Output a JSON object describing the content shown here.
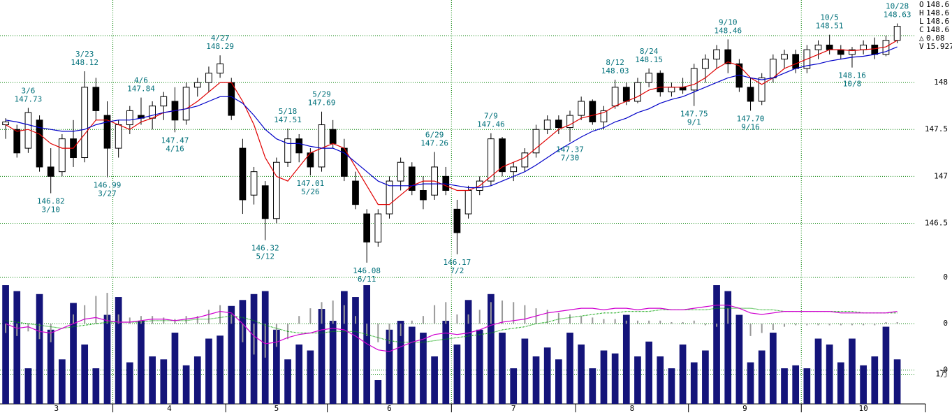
{
  "chart_data": {
    "type": "candlestick",
    "months": [
      "3",
      "4",
      "5",
      "6",
      "7",
      "8",
      "9",
      "10"
    ],
    "xlim": [
      -0.5,
      81.5
    ],
    "xticks": [
      9.5,
      19.5,
      28.5,
      39.5,
      50.5,
      60.5,
      70.5,
      81.5
    ],
    "xgrid": [
      9.5,
      39.5,
      70.5
    ],
    "ylim": [
      145.93,
      148.88
    ],
    "yticks": [
      146.5,
      147,
      147.5,
      148
    ],
    "ygrid": [
      148.5
    ],
    "up_color": "#ffffff",
    "down_color": "#000000",
    "ohlc": [
      [
        147.55,
        147.62,
        147.4,
        147.58
      ],
      [
        147.5,
        147.55,
        147.2,
        147.25
      ],
      [
        147.3,
        147.73,
        147.25,
        147.68
      ],
      [
        147.6,
        147.65,
        147.05,
        147.1
      ],
      [
        147.1,
        147.3,
        146.82,
        147.0
      ],
      [
        147.05,
        147.45,
        147.0,
        147.4
      ],
      [
        147.4,
        147.6,
        147.1,
        147.2
      ],
      [
        147.2,
        148.12,
        147.15,
        147.95
      ],
      [
        147.95,
        148.05,
        147.6,
        147.7
      ],
      [
        147.65,
        147.8,
        146.99,
        147.3
      ],
      [
        147.3,
        147.6,
        147.2,
        147.55
      ],
      [
        147.55,
        147.75,
        147.45,
        147.7
      ],
      [
        147.65,
        147.84,
        147.55,
        147.62
      ],
      [
        147.62,
        147.8,
        147.5,
        147.75
      ],
      [
        147.75,
        147.9,
        147.6,
        147.85
      ],
      [
        147.8,
        147.95,
        147.47,
        147.6
      ],
      [
        147.6,
        148.0,
        147.55,
        147.95
      ],
      [
        147.95,
        148.05,
        147.85,
        148.0
      ],
      [
        148.0,
        148.17,
        147.9,
        148.1
      ],
      [
        148.1,
        148.29,
        148.05,
        148.2
      ],
      [
        148.0,
        148.05,
        147.6,
        147.65
      ],
      [
        147.3,
        147.4,
        146.6,
        146.75
      ],
      [
        146.8,
        147.1,
        146.7,
        147.05
      ],
      [
        146.9,
        146.95,
        146.32,
        146.55
      ],
      [
        146.55,
        147.2,
        146.5,
        147.15
      ],
      [
        147.15,
        147.51,
        147.1,
        147.4
      ],
      [
        147.4,
        147.45,
        147.15,
        147.25
      ],
      [
        147.25,
        147.3,
        147.01,
        147.1
      ],
      [
        147.1,
        147.69,
        147.05,
        147.55
      ],
      [
        147.5,
        147.6,
        147.3,
        147.35
      ],
      [
        147.3,
        147.4,
        146.95,
        147.0
      ],
      [
        146.95,
        147.05,
        146.65,
        146.7
      ],
      [
        146.6,
        146.65,
        146.08,
        146.3
      ],
      [
        146.3,
        146.65,
        146.25,
        146.6
      ],
      [
        146.6,
        147.0,
        146.55,
        146.95
      ],
      [
        146.95,
        147.2,
        146.85,
        147.15
      ],
      [
        147.1,
        147.15,
        146.8,
        146.85
      ],
      [
        146.85,
        147.0,
        146.65,
        146.75
      ],
      [
        146.8,
        147.26,
        146.75,
        147.1
      ],
      [
        147.0,
        147.1,
        146.8,
        146.85
      ],
      [
        146.65,
        146.75,
        146.17,
        146.4
      ],
      [
        146.6,
        146.9,
        146.55,
        146.85
      ],
      [
        146.85,
        147.0,
        146.8,
        146.95
      ],
      [
        146.95,
        147.46,
        146.9,
        147.4
      ],
      [
        147.4,
        147.42,
        147.0,
        147.05
      ],
      [
        147.05,
        147.15,
        146.95,
        147.1
      ],
      [
        147.1,
        147.3,
        147.05,
        147.25
      ],
      [
        147.25,
        147.55,
        147.2,
        147.5
      ],
      [
        147.5,
        147.65,
        147.45,
        147.6
      ],
      [
        147.6,
        147.65,
        147.45,
        147.52
      ],
      [
        147.52,
        147.7,
        147.37,
        147.65
      ],
      [
        147.65,
        147.85,
        147.6,
        147.8
      ],
      [
        147.8,
        147.82,
        147.55,
        147.58
      ],
      [
        147.58,
        147.75,
        147.5,
        147.7
      ],
      [
        147.75,
        148.03,
        147.72,
        147.95
      ],
      [
        147.95,
        148.0,
        147.76,
        147.8
      ],
      [
        147.8,
        148.05,
        147.78,
        148.0
      ],
      [
        148.0,
        148.15,
        147.95,
        148.1
      ],
      [
        148.1,
        148.13,
        147.85,
        147.9
      ],
      [
        147.9,
        148.0,
        147.85,
        147.95
      ],
      [
        147.95,
        148.05,
        147.88,
        147.92
      ],
      [
        147.92,
        148.2,
        147.75,
        148.15
      ],
      [
        148.15,
        148.3,
        148.0,
        148.25
      ],
      [
        148.25,
        148.4,
        148.15,
        148.35
      ],
      [
        148.35,
        148.46,
        148.1,
        148.2
      ],
      [
        148.2,
        148.25,
        147.9,
        147.95
      ],
      [
        147.95,
        148.05,
        147.7,
        147.8
      ],
      [
        147.8,
        148.1,
        147.76,
        148.05
      ],
      [
        148.05,
        148.3,
        148.0,
        148.25
      ],
      [
        148.25,
        148.35,
        148.15,
        148.3
      ],
      [
        148.3,
        148.35,
        148.1,
        148.15
      ],
      [
        148.15,
        148.4,
        148.1,
        148.35
      ],
      [
        148.35,
        148.45,
        148.25,
        148.4
      ],
      [
        148.4,
        148.51,
        148.3,
        148.35
      ],
      [
        148.35,
        148.4,
        148.25,
        148.3
      ],
      [
        148.3,
        148.38,
        148.16,
        148.35
      ],
      [
        148.35,
        148.45,
        148.3,
        148.4
      ],
      [
        148.4,
        148.48,
        148.25,
        148.3
      ],
      [
        148.3,
        148.5,
        148.28,
        148.45
      ],
      [
        148.45,
        148.63,
        148.42,
        148.6
      ]
    ],
    "moving_averages": [
      {
        "color": "#e00000",
        "values": [
          147.55,
          147.48,
          147.5,
          147.45,
          147.35,
          147.3,
          147.3,
          147.45,
          147.6,
          147.6,
          147.55,
          147.5,
          147.58,
          147.62,
          147.68,
          147.7,
          147.72,
          147.8,
          147.9,
          148.0,
          148.0,
          147.8,
          147.55,
          147.2,
          147.0,
          146.95,
          147.1,
          147.25,
          147.3,
          147.35,
          147.3,
          147.1,
          146.9,
          146.7,
          146.7,
          146.8,
          146.9,
          146.95,
          146.95,
          146.9,
          146.85,
          146.85,
          146.9,
          147.0,
          147.1,
          147.15,
          147.2,
          147.3,
          147.4,
          147.5,
          147.55,
          147.62,
          147.65,
          147.68,
          147.75,
          147.8,
          147.85,
          147.92,
          147.95,
          147.95,
          147.95,
          147.98,
          148.05,
          148.15,
          148.22,
          148.18,
          148.05,
          147.98,
          148.05,
          148.15,
          148.2,
          148.25,
          148.3,
          148.35,
          148.35,
          148.34,
          148.35,
          148.36,
          148.38,
          148.45
        ]
      },
      {
        "color": "#0000c8",
        "values": [
          147.6,
          147.58,
          147.55,
          147.52,
          147.5,
          147.48,
          147.48,
          147.5,
          147.55,
          147.58,
          147.6,
          147.6,
          147.62,
          147.65,
          147.68,
          147.7,
          147.72,
          147.75,
          147.8,
          147.85,
          147.85,
          147.78,
          147.65,
          147.5,
          147.4,
          147.35,
          147.35,
          147.32,
          147.3,
          147.3,
          147.25,
          147.15,
          147.05,
          146.95,
          146.9,
          146.9,
          146.9,
          146.92,
          146.92,
          146.92,
          146.9,
          146.88,
          146.88,
          146.9,
          146.95,
          147.0,
          147.05,
          147.12,
          147.2,
          147.28,
          147.35,
          147.42,
          147.48,
          147.52,
          147.58,
          147.62,
          147.68,
          147.72,
          147.78,
          147.82,
          147.85,
          147.9,
          147.95,
          148.0,
          148.05,
          148.08,
          148.05,
          148.03,
          148.05,
          148.1,
          148.15,
          148.18,
          148.2,
          148.23,
          148.25,
          148.27,
          148.28,
          148.3,
          148.33,
          148.38
        ]
      }
    ],
    "annotations": [
      {
        "date": "3/6",
        "value": 147.73,
        "kind": "high"
      },
      {
        "date": "3/10",
        "value": 146.82,
        "kind": "low"
      },
      {
        "date": "3/23",
        "value": 148.12,
        "kind": "high"
      },
      {
        "date": "3/27",
        "value": 146.99,
        "kind": "low"
      },
      {
        "date": "4/6",
        "value": 147.84,
        "kind": "high"
      },
      {
        "date": "4/16",
        "value": 147.47,
        "kind": "low"
      },
      {
        "date": "4/27",
        "value": 148.29,
        "kind": "high"
      },
      {
        "date": "5/12",
        "value": 146.32,
        "kind": "low"
      },
      {
        "date": "5/18",
        "value": 147.51,
        "kind": "high"
      },
      {
        "date": "5/26",
        "value": 147.01,
        "kind": "low"
      },
      {
        "date": "5/29",
        "value": 147.69,
        "kind": "high"
      },
      {
        "date": "6/11",
        "value": 146.08,
        "kind": "low"
      },
      {
        "date": "6/29",
        "value": 147.26,
        "kind": "high"
      },
      {
        "date": "7/2",
        "value": 146.17,
        "kind": "low"
      },
      {
        "date": "7/9",
        "value": 147.46,
        "kind": "high"
      },
      {
        "date": "7/30",
        "value": 147.37,
        "kind": "low"
      },
      {
        "date": "8/12",
        "value": 148.03,
        "kind": "high"
      },
      {
        "date": "8/24",
        "value": 148.15,
        "kind": "high"
      },
      {
        "date": "9/1",
        "value": 147.75,
        "kind": "low"
      },
      {
        "date": "9/10",
        "value": 148.46,
        "kind": "high"
      },
      {
        "date": "9/16",
        "value": 147.7,
        "label": "147.70",
        "kind": "low"
      },
      {
        "date": "10/5",
        "value": 148.51,
        "kind": "high"
      },
      {
        "date": "10/8",
        "value": 148.16,
        "kind": "low"
      },
      {
        "date": "10/28",
        "value": 148.63,
        "kind": "high"
      }
    ],
    "info": [
      {
        "label": "O",
        "value": 148.6
      },
      {
        "label": "H",
        "value": 148.6
      },
      {
        "label": "L",
        "value": 148.6
      },
      {
        "label": "C",
        "value": 148.6
      },
      {
        "label": "△",
        "value": 0.08
      },
      {
        "label": "V",
        "value": 15.927
      }
    ],
    "volume": {
      "color": "#14147a",
      "ylim": [
        0,
        42600
      ],
      "yticks": [
        {
          "value": 10000,
          "label": "1万"
        }
      ],
      "values": [
        40000,
        38000,
        12000,
        37000,
        25000,
        15000,
        34000,
        20000,
        12000,
        30000,
        36000,
        14000,
        28000,
        16000,
        15000,
        24000,
        13000,
        16000,
        22000,
        23000,
        33000,
        35000,
        37000,
        38000,
        25000,
        15000,
        20000,
        18000,
        32000,
        28000,
        38000,
        36000,
        40000,
        8000,
        25000,
        28000,
        26000,
        24000,
        16000,
        28000,
        20000,
        35000,
        25000,
        37000,
        24000,
        12000,
        22000,
        16000,
        19000,
        15000,
        24000,
        20000,
        12000,
        18000,
        17000,
        30000,
        16000,
        21000,
        16000,
        12000,
        20000,
        14000,
        18000,
        40000,
        38000,
        30000,
        14000,
        18000,
        24000,
        12000,
        13000,
        12000,
        22000,
        20000,
        14000,
        22000,
        13000,
        16000,
        26000,
        15000
      ]
    },
    "oscillator": {
      "ylim": [
        -0.52,
        0.3
      ],
      "yticks": [
        {
          "value": 0.3,
          "label": "0"
        },
        0,
        {
          "value": -0.3,
          "label": "-0"
        }
      ],
      "macd": {
        "color": "#d000d0",
        "values": [
          0.0,
          -0.03,
          -0.02,
          -0.05,
          -0.06,
          -0.03,
          0.0,
          0.03,
          0.04,
          0.02,
          0.01,
          0.01,
          0.02,
          0.03,
          0.03,
          0.02,
          0.03,
          0.04,
          0.06,
          0.08,
          0.07,
          0.0,
          -0.08,
          -0.13,
          -0.12,
          -0.09,
          -0.07,
          -0.06,
          -0.04,
          -0.03,
          -0.04,
          -0.08,
          -0.13,
          -0.17,
          -0.18,
          -0.15,
          -0.12,
          -0.1,
          -0.07,
          -0.06,
          -0.07,
          -0.06,
          -0.04,
          -0.01,
          0.01,
          0.02,
          0.03,
          0.05,
          0.07,
          0.08,
          0.09,
          0.1,
          0.1,
          0.09,
          0.1,
          0.1,
          0.09,
          0.1,
          0.1,
          0.09,
          0.09,
          0.1,
          0.11,
          0.12,
          0.12,
          0.1,
          0.07,
          0.06,
          0.07,
          0.08,
          0.08,
          0.08,
          0.08,
          0.08,
          0.07,
          0.07,
          0.07,
          0.07,
          0.07,
          0.08
        ]
      },
      "signal": {
        "color": "#00a000",
        "values": [
          0.02,
          0.01,
          0.0,
          -0.01,
          -0.02,
          -0.03,
          -0.02,
          -0.01,
          0.0,
          0.01,
          0.01,
          0.01,
          0.01,
          0.02,
          0.02,
          0.02,
          0.02,
          0.03,
          0.03,
          0.04,
          0.05,
          0.04,
          0.02,
          -0.01,
          -0.03,
          -0.05,
          -0.06,
          -0.06,
          -0.06,
          -0.05,
          -0.05,
          -0.05,
          -0.07,
          -0.09,
          -0.11,
          -0.12,
          -0.12,
          -0.12,
          -0.11,
          -0.1,
          -0.09,
          -0.08,
          -0.07,
          -0.06,
          -0.04,
          -0.03,
          -0.02,
          0.0,
          0.01,
          0.03,
          0.04,
          0.05,
          0.06,
          0.07,
          0.07,
          0.08,
          0.08,
          0.08,
          0.09,
          0.09,
          0.09,
          0.09,
          0.09,
          0.1,
          0.1,
          0.1,
          0.1,
          0.09,
          0.09,
          0.08,
          0.08,
          0.08,
          0.08,
          0.08,
          0.08,
          0.08,
          0.07,
          0.07,
          0.07,
          0.07
        ]
      },
      "histogram": {
        "color": "#999999",
        "values": [
          -0.06,
          -0.08,
          -0.05,
          -0.1,
          -0.12,
          0.0,
          0.06,
          0.12,
          0.18,
          0.2,
          0.06,
          0.04,
          0.05,
          0.05,
          0.04,
          0.03,
          0.05,
          0.05,
          0.09,
          0.12,
          0.06,
          -0.12,
          -0.2,
          -0.22,
          -0.15,
          -0.1,
          0.05,
          0.1,
          0.14,
          0.15,
          0.12,
          0.05,
          -0.08,
          -0.12,
          -0.13,
          -0.08,
          0.02,
          0.05,
          0.12,
          0.14,
          0.06,
          0.06,
          0.09,
          0.14,
          0.15,
          0.14,
          0.12,
          0.1,
          0.09,
          0.07,
          0.06,
          0.05,
          0.04,
          0.03,
          0.03,
          0.02,
          0.02,
          0.02,
          0.02,
          0.01,
          0.01,
          0.02,
          -0.01,
          -0.02,
          0.1,
          0.0,
          -0.08,
          -0.06,
          -0.04,
          -0.02,
          -0.01,
          -0.01,
          -0.01,
          -0.01,
          -0.01,
          -0.01,
          -0.01,
          -0.01,
          0.01,
          0.01
        ]
      }
    }
  }
}
